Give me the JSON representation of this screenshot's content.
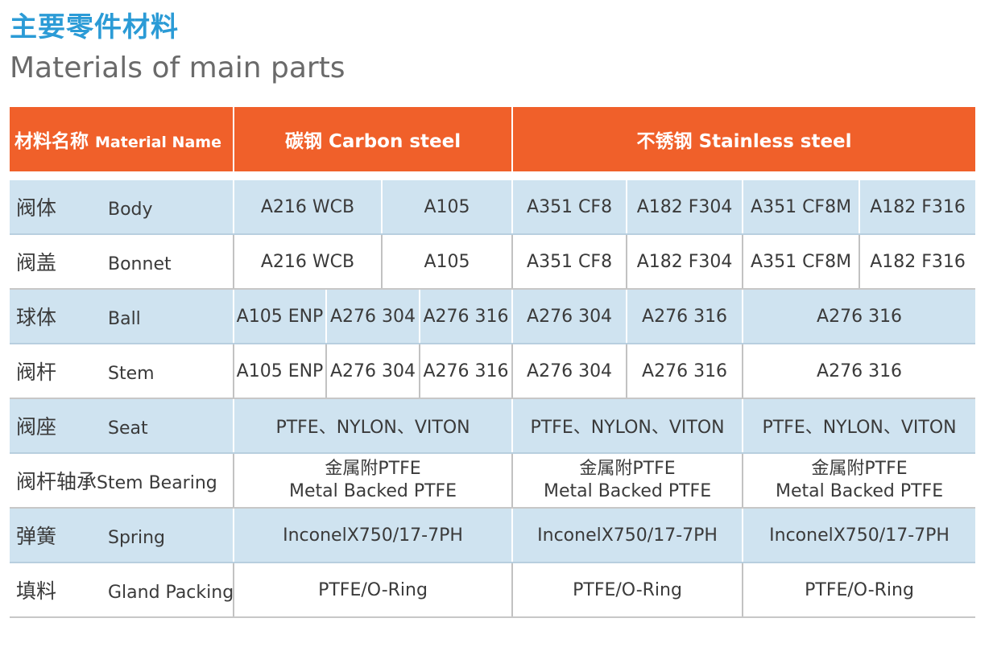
{
  "title_cn": "主要零件材料",
  "title_en": "Materials of main parts",
  "header": {
    "material_name_cn": "材料名称",
    "material_name_en": "Material Name",
    "carbon_cn": "碳钢",
    "carbon_en": "Carbon steel",
    "stainless_cn": "不锈钢",
    "stainless_en": "Stainless steel"
  },
  "rows": {
    "body": {
      "cn": "阀体",
      "en": "Body",
      "c1": "A216 WCB",
      "c2": "A105",
      "s1": "A351 CF8",
      "s2": "A182 F304",
      "s3": "A351 CF8M",
      "s4": "A182 F316"
    },
    "bonnet": {
      "cn": "阀盖",
      "en": "Bonnet",
      "c1": "A216 WCB",
      "c2": "A105",
      "s1": "A351 CF8",
      "s2": "A182 F304",
      "s3": "A351 CF8M",
      "s4": "A182 F316"
    },
    "ball": {
      "cn": "球体",
      "en": "Ball",
      "c1": "A105 ENP",
      "c2": "A276 304",
      "c3": "A276 316",
      "s1": "A276 304",
      "s2": "A276 316",
      "s3": "A276 316"
    },
    "stem": {
      "cn": "阀杆",
      "en": "Stem",
      "c1": "A105 ENP",
      "c2": "A276 304",
      "c3": "A276 316",
      "s1": "A276 304",
      "s2": "A276 316",
      "s3": "A276 316"
    },
    "seat": {
      "cn": "阀座",
      "en": "Seat",
      "c": "PTFE、NYLON、VITON",
      "s1": "PTFE、NYLON、VITON",
      "s2": "PTFE、NYLON、VITON"
    },
    "bearing": {
      "cn": "阀杆轴承",
      "en": "Stem Bearing",
      "line1": "金属附PTFE",
      "line2": "Metal Backed PTFE"
    },
    "spring": {
      "cn": "弹簧",
      "en": "Spring",
      "c": "InconelX750/17-7PH",
      "s1": "InconelX750/17-7PH",
      "s2": "InconelX750/17-7PH"
    },
    "packing": {
      "cn": "填料",
      "en": "Gland Packing",
      "c": "PTFE/O-Ring",
      "s1": "PTFE/O-Ring",
      "s2": "PTFE/O-Ring"
    }
  },
  "colors": {
    "title": "#2b9bd6",
    "header_bg": "#f0602a",
    "shade_row": "#cfe3f0"
  }
}
